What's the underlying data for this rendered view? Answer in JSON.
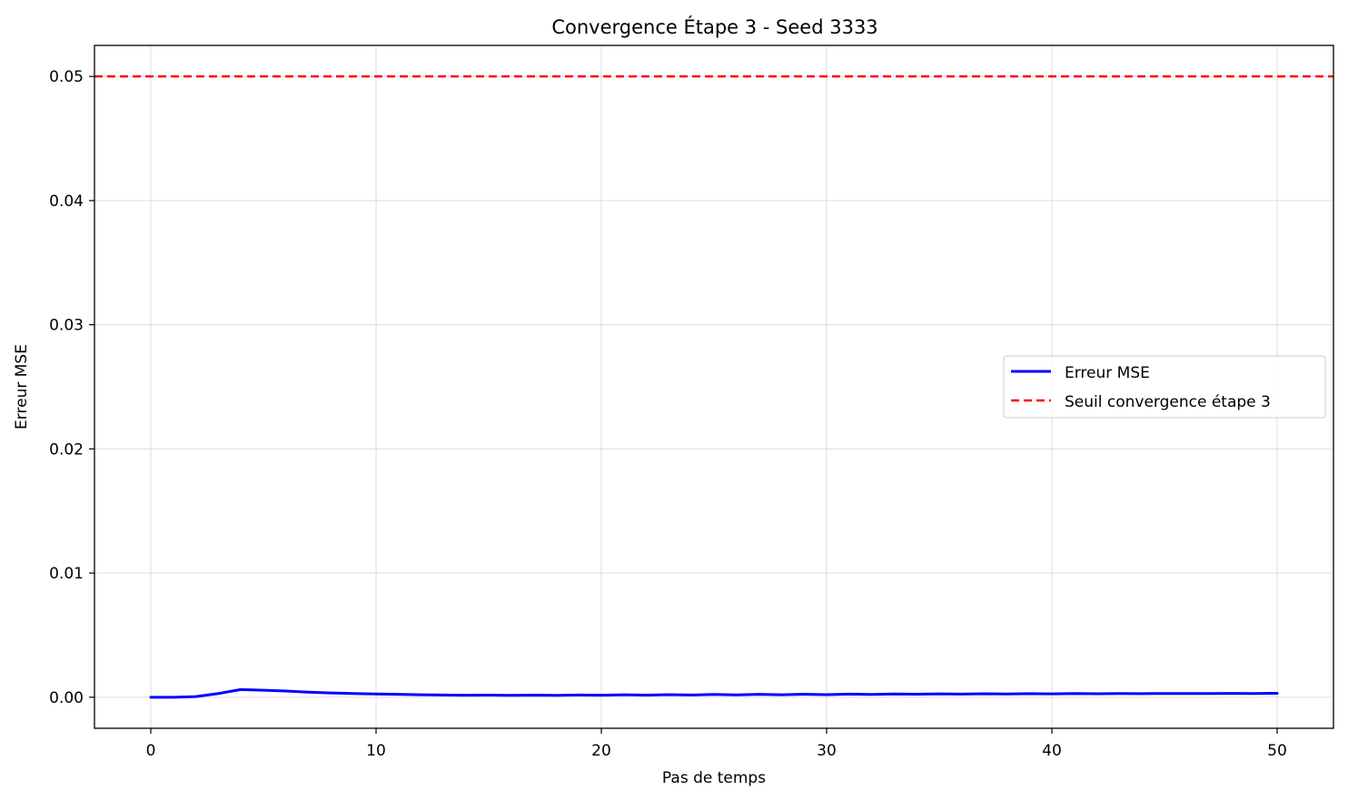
{
  "chart_data": {
    "type": "line",
    "title": "Convergence Étape 3 - Seed 3333",
    "xlabel": "Pas de temps",
    "ylabel": "Erreur MSE",
    "xlim": [
      -2.5,
      52.5
    ],
    "ylim": [
      -0.0025,
      0.0525
    ],
    "xticks": [
      0,
      10,
      20,
      30,
      40,
      50
    ],
    "xtick_labels": [
      "0",
      "10",
      "20",
      "30",
      "40",
      "50"
    ],
    "yticks": [
      0.0,
      0.01,
      0.02,
      0.03,
      0.04,
      0.05
    ],
    "ytick_labels": [
      "0.00",
      "0.01",
      "0.02",
      "0.03",
      "0.04",
      "0.05"
    ],
    "grid": true,
    "legend_position": "center-right",
    "series": [
      {
        "name": "Erreur MSE",
        "color": "#0000ff",
        "style": "solid",
        "x": [
          0,
          1,
          2,
          3,
          4,
          5,
          6,
          7,
          8,
          9,
          10,
          11,
          12,
          13,
          14,
          15,
          16,
          17,
          18,
          19,
          20,
          21,
          22,
          23,
          24,
          25,
          26,
          27,
          28,
          29,
          30,
          31,
          32,
          33,
          34,
          35,
          36,
          37,
          38,
          39,
          40,
          41,
          42,
          43,
          44,
          45,
          46,
          47,
          48,
          49,
          50
        ],
        "y": [
          0.0,
          0.0,
          5e-05,
          0.0003,
          0.00062,
          0.00056,
          0.0005,
          0.00041,
          0.00034,
          0.0003,
          0.00026,
          0.00023,
          0.0002,
          0.00018,
          0.00016,
          0.00017,
          0.00015,
          0.00017,
          0.00015,
          0.00018,
          0.00016,
          0.0002,
          0.00017,
          0.00021,
          0.00018,
          0.00022,
          0.00019,
          0.00023,
          0.0002,
          0.00024,
          0.00021,
          0.00025,
          0.00022,
          0.00026,
          0.00024,
          0.00027,
          0.00025,
          0.00028,
          0.00026,
          0.00029,
          0.00027,
          0.0003,
          0.00028,
          0.0003,
          0.00029,
          0.0003,
          0.0003,
          0.0003,
          0.00031,
          0.0003,
          0.00032
        ]
      },
      {
        "name": "Seuil convergence étape 3",
        "color": "#ff0000",
        "style": "dashed",
        "hline": 0.05
      }
    ]
  }
}
